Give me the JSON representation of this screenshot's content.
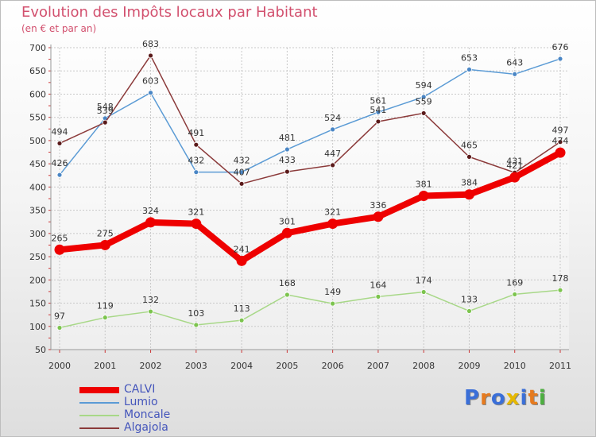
{
  "title": "Evolution des Impôts locaux par Habitant",
  "subtitle": "(en € et par an)",
  "brand": {
    "text": "Proxiti",
    "colors": [
      "#3a6fd8",
      "#e67a1e",
      "#3a6fd8",
      "#e6b800",
      "#3a6fd8",
      "#e67a1e",
      "#4caf3f"
    ]
  },
  "chart_data": {
    "type": "line",
    "x": [
      "2000",
      "2001",
      "2002",
      "2003",
      "2004",
      "2005",
      "2006",
      "2007",
      "2008",
      "2009",
      "2010",
      "2011"
    ],
    "ylim": [
      50,
      700
    ],
    "yticks": [
      50,
      100,
      150,
      200,
      250,
      300,
      350,
      400,
      450,
      500,
      550,
      600,
      650,
      700
    ],
    "grid": true,
    "legend_position": "bottom-left",
    "series": [
      {
        "name": "Lumio",
        "color": "#5b9bd5",
        "point_color": "#4a86c5",
        "values": [
          426,
          548,
          603,
          432,
          432,
          481,
          524,
          561,
          594,
          653,
          643,
          676
        ]
      },
      {
        "name": "Algajola",
        "color": "#8b3a3a",
        "point_color": "#5a1a1a",
        "values": [
          494,
          539,
          683,
          491,
          407,
          433,
          447,
          541,
          559,
          465,
          431,
          497
        ]
      },
      {
        "name": "Moncale",
        "color": "#a8d888",
        "point_color": "#7cc44e",
        "values": [
          97,
          119,
          132,
          103,
          113,
          168,
          149,
          164,
          174,
          133,
          169,
          178
        ]
      },
      {
        "name": "CALVI",
        "color": "#ee0000",
        "point_color": "#ee0000",
        "values": [
          265,
          275,
          324,
          321,
          241,
          301,
          321,
          336,
          381,
          384,
          421,
          474
        ]
      }
    ],
    "legend_order": [
      "CALVI",
      "Lumio",
      "Moncale",
      "Algajola"
    ]
  }
}
